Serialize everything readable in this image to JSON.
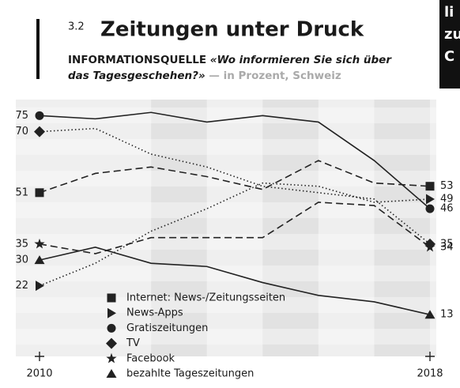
{
  "sidebar": [
    "li",
    "zu",
    "C"
  ],
  "chart_data": {
    "type": "line",
    "number": "3.2",
    "title": "Zeitungen unter Druck",
    "subtitle_lead": "INFORMATIONSQUELLE",
    "subtitle_question": "«Wo informieren Sie sich über das Tagesgeschehen?»",
    "subtitle_unit": "— in Prozent, Schweiz",
    "categories": [
      "2010",
      null,
      null,
      null,
      null,
      null,
      null,
      "2018"
    ],
    "ylim": [
      0,
      80
    ],
    "series": [
      {
        "name": "Internet: News-/Zeitungsseiten",
        "color": "#222222",
        "marker": "square",
        "line_style": "dashed",
        "values": [
          51,
          57,
          59,
          56,
          52,
          61,
          54,
          53
        ]
      },
      {
        "name": "News-Apps",
        "color": "#222222",
        "marker": "triangle-right",
        "line_style": "dotted",
        "values": [
          22,
          29,
          39,
          46,
          54,
          53,
          48,
          49
        ]
      },
      {
        "name": "Gratiszeitungen",
        "color": "#222222",
        "marker": "circle",
        "line_style": "solid",
        "values": [
          75,
          74,
          76,
          73,
          75,
          73,
          61,
          46
        ]
      },
      {
        "name": "TV",
        "color": "#222222",
        "marker": "diamond",
        "line_style": "dotted",
        "values": [
          70,
          71,
          63,
          59,
          53,
          51,
          49,
          35
        ]
      },
      {
        "name": "Facebook",
        "color": "#222222",
        "marker": "star",
        "line_style": "dashed",
        "values": [
          35,
          32,
          37,
          37,
          37,
          48,
          47,
          34
        ]
      },
      {
        "name": "bezahlte Tageszeitungen",
        "color": "#222222",
        "marker": "triangle-up",
        "line_style": "solid",
        "values": [
          30,
          34,
          29,
          28,
          23,
          19,
          17,
          13
        ]
      }
    ]
  }
}
